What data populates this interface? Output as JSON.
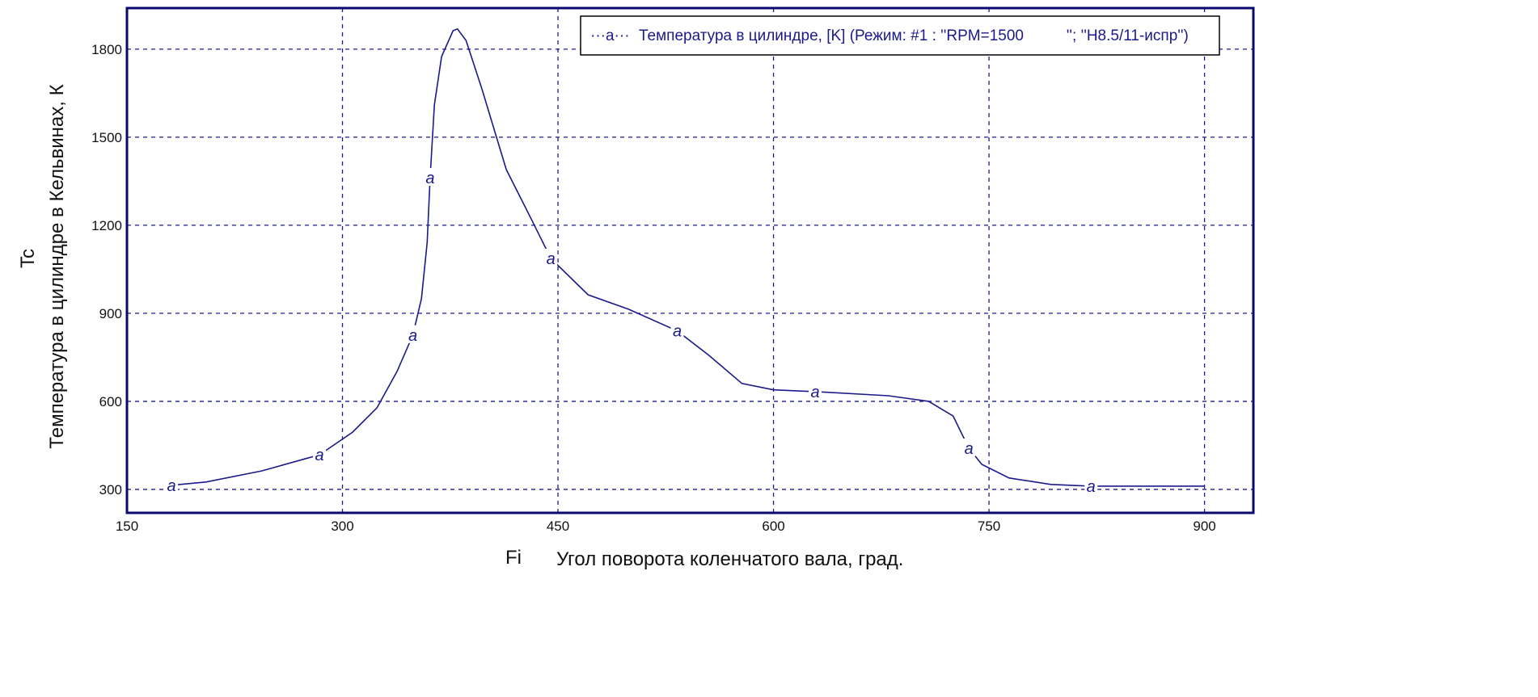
{
  "chart_data": {
    "type": "line",
    "title": "",
    "xlabel": "Угол поворота коленчатого вала, град.",
    "xlabel_symbol": "Fi",
    "ylabel": "Температура в цилиндре в Кельвинах, К",
    "ylabel_symbol": "Tc",
    "xlim": [
      150,
      934
    ],
    "ylim": [
      220,
      1940
    ],
    "xticks": [
      150,
      300,
      450,
      600,
      750,
      900
    ],
    "yticks": [
      300,
      600,
      900,
      1200,
      1500,
      1800
    ],
    "grid": true,
    "legend_position": "top-right",
    "series": [
      {
        "name": "Температура в цилиндре, [K] (Режим: #1 : ''RPM=1500          ''; ''H8.5/11-испр'')",
        "legend_marker": "···a···",
        "marker": "a",
        "color": "#1a1a8c",
        "x": [
          181,
          205,
          244,
          284,
          307,
          324,
          338,
          349,
          355,
          359,
          361,
          364,
          369,
          377,
          380,
          386,
          397,
          414,
          431,
          445,
          471,
          499,
          533,
          555,
          578,
          600,
          629,
          680,
          708,
          725,
          736,
          745,
          764,
          793,
          821,
          900
        ],
        "y": [
          314,
          325,
          363,
          418,
          495,
          578,
          702,
          826,
          950,
          1142,
          1362,
          1610,
          1775,
          1863,
          1869,
          1830,
          1665,
          1390,
          1225,
          1087,
          963,
          914,
          840,
          757,
          661,
          639,
          633,
          619,
          600,
          550,
          440,
          385,
          339,
          317,
          311,
          311
        ],
        "marker_x": [
          181,
          284,
          349,
          361,
          445,
          533,
          629,
          736,
          821
        ]
      }
    ]
  },
  "colors": {
    "axis": "#0a0a6e",
    "grid": "#1a1a8c",
    "line": "#1a1a8c"
  }
}
